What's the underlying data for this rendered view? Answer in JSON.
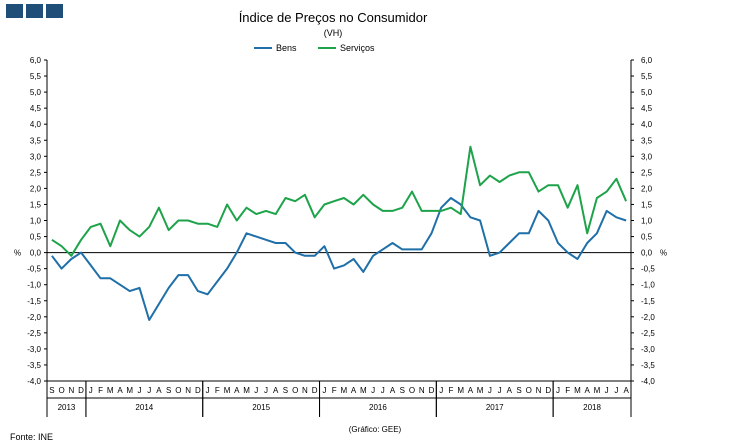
{
  "chart_data": {
    "type": "line",
    "title": "Índice de Preços no Consumidor",
    "subtitle": "(VH)",
    "ylabel_left": "%",
    "ylabel_right": "%",
    "ylim": [
      -4.0,
      6.0
    ],
    "ytick_step": 0.5,
    "ytick_labels": [
      "6,0",
      "5,5",
      "5,0",
      "4,5",
      "4,0",
      "3,5",
      "3,0",
      "2,5",
      "2,0",
      "1,5",
      "1,0",
      "0,5",
      "0,0",
      "-0,5",
      "-1,0",
      "-1,5",
      "-2,0",
      "-2,5",
      "-3,0",
      "-3,5",
      "-4,0"
    ],
    "month_labels": [
      "S",
      "O",
      "N",
      "D",
      "J",
      "F",
      "M",
      "A",
      "M",
      "J",
      "J",
      "A",
      "S",
      "O",
      "N",
      "D",
      "J",
      "F",
      "M",
      "A",
      "M",
      "J",
      "J",
      "A",
      "S",
      "O",
      "N",
      "D",
      "J",
      "F",
      "M",
      "A",
      "M",
      "J",
      "J",
      "A",
      "S",
      "O",
      "N",
      "D",
      "J",
      "F",
      "M",
      "A",
      "M",
      "J",
      "J",
      "A",
      "S",
      "O",
      "N",
      "D",
      "J",
      "F",
      "M",
      "A",
      "M",
      "J",
      "J",
      "A"
    ],
    "years": [
      {
        "label": "2013",
        "start": 0,
        "count": 4
      },
      {
        "label": "2014",
        "start": 4,
        "count": 12
      },
      {
        "label": "2015",
        "start": 16,
        "count": 12
      },
      {
        "label": "2016",
        "start": 28,
        "count": 12
      },
      {
        "label": "2017",
        "start": 40,
        "count": 12
      },
      {
        "label": "2018",
        "start": 52,
        "count": 8
      }
    ],
    "legend": [
      "Bens",
      "Serviços"
    ],
    "series": [
      {
        "name": "Bens",
        "color": "#1f6fa8",
        "values": [
          -0.1,
          -0.5,
          -0.2,
          0.0,
          -0.4,
          -0.8,
          -0.8,
          -1.0,
          -1.2,
          -1.1,
          -2.1,
          -1.6,
          -1.1,
          -0.7,
          -0.7,
          -1.2,
          -1.3,
          -0.9,
          -0.5,
          0.0,
          0.6,
          0.5,
          0.4,
          0.3,
          0.3,
          0.0,
          -0.1,
          -0.1,
          0.2,
          -0.5,
          -0.4,
          -0.2,
          -0.6,
          -0.1,
          0.1,
          0.3,
          0.1,
          0.1,
          0.1,
          0.6,
          1.4,
          1.7,
          1.5,
          1.1,
          1.0,
          -0.1,
          0.0,
          0.3,
          0.6,
          0.6,
          1.3,
          1.0,
          0.3,
          0.0,
          -0.2,
          0.3,
          0.6,
          1.3,
          1.1,
          1.0
        ]
      },
      {
        "name": "Serviços",
        "color": "#1ea34a",
        "values": [
          0.4,
          0.2,
          -0.1,
          0.4,
          0.8,
          0.9,
          0.2,
          1.0,
          0.7,
          0.5,
          0.8,
          1.4,
          0.7,
          1.0,
          1.0,
          0.9,
          0.9,
          0.8,
          1.5,
          1.0,
          1.4,
          1.2,
          1.3,
          1.2,
          1.7,
          1.6,
          1.8,
          1.1,
          1.5,
          1.6,
          1.7,
          1.5,
          1.8,
          1.5,
          1.3,
          1.3,
          1.4,
          1.9,
          1.3,
          1.3,
          1.3,
          1.4,
          1.2,
          3.3,
          2.1,
          2.4,
          2.2,
          2.4,
          2.5,
          2.5,
          1.9,
          2.1,
          2.1,
          1.4,
          2.1,
          0.6,
          1.7,
          1.9,
          2.3,
          1.6
        ]
      }
    ]
  },
  "footer": {
    "source": "Fonte: INE",
    "credit": "(Gráfico: GEE)"
  }
}
